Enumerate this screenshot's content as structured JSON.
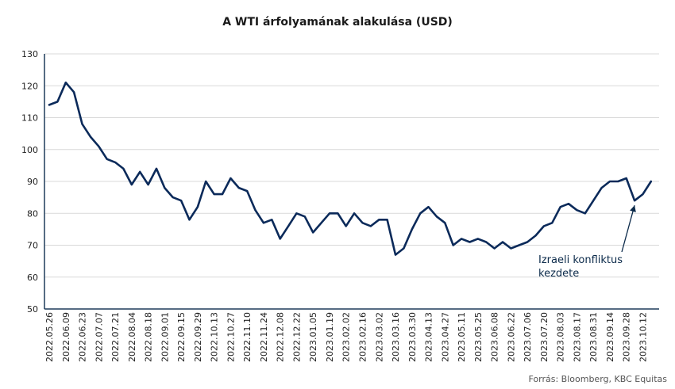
{
  "chart_data": {
    "type": "line",
    "title": "A WTI árfolyamának alakulása (USD)",
    "xlabel": "",
    "ylabel": "",
    "ylim": [
      50,
      130
    ],
    "y_ticks": [
      50,
      60,
      70,
      80,
      90,
      100,
      110,
      120,
      130
    ],
    "x_tick_labels": [
      "2022.05.26",
      "2022.06.09",
      "2022.06.23",
      "2022.07.07",
      "2022.07.21",
      "2022.08.04",
      "2022.08.18",
      "2022.09.01",
      "2022.09.15",
      "2022.09.29",
      "2022.10.13",
      "2022.10.27",
      "2022.11.10",
      "2022.11.24",
      "2022.12.08",
      "2022.12.22",
      "2023.01.05",
      "2023.01.19",
      "2023.02.02",
      "2023.02.16",
      "2023.03.02",
      "2023.03.16",
      "2023.03.30",
      "2023.04.13",
      "2023.04.27",
      "2023.05.11",
      "2023.05.25",
      "2023.06.08",
      "2023.06.22",
      "2023.07.06",
      "2023.07.20",
      "2023.08.03",
      "2023.08.17",
      "2023.08.31",
      "2023.09.14",
      "2023.09.28",
      "2023.10.12"
    ],
    "grid": true,
    "line_color": "#0b2a5a",
    "series": [
      {
        "x": [
          "2022.05.26",
          "2022.06.02",
          "2022.06.09",
          "2022.06.16",
          "2022.06.23",
          "2022.06.30",
          "2022.07.07",
          "2022.07.14",
          "2022.07.21",
          "2022.07.28",
          "2022.08.04",
          "2022.08.11",
          "2022.08.18",
          "2022.08.25",
          "2022.09.01",
          "2022.09.08",
          "2022.09.15",
          "2022.09.22",
          "2022.09.29",
          "2022.10.06",
          "2022.10.13",
          "2022.10.20",
          "2022.10.27",
          "2022.11.03",
          "2022.11.10",
          "2022.11.17",
          "2022.11.24",
          "2022.12.01",
          "2022.12.08",
          "2022.12.15",
          "2022.12.22",
          "2022.12.29",
          "2023.01.05",
          "2023.01.12",
          "2023.01.19",
          "2023.01.26",
          "2023.02.02",
          "2023.02.09",
          "2023.02.16",
          "2023.02.23",
          "2023.03.02",
          "2023.03.09",
          "2023.03.16",
          "2023.03.23",
          "2023.03.30",
          "2023.04.06",
          "2023.04.13",
          "2023.04.20",
          "2023.04.27",
          "2023.05.04",
          "2023.05.11",
          "2023.05.18",
          "2023.05.25",
          "2023.06.01",
          "2023.06.08",
          "2023.06.15",
          "2023.06.22",
          "2023.06.29",
          "2023.07.06",
          "2023.07.13",
          "2023.07.20",
          "2023.07.27",
          "2023.08.03",
          "2023.08.10",
          "2023.08.17",
          "2023.08.24",
          "2023.08.31",
          "2023.09.07",
          "2023.09.14",
          "2023.09.21",
          "2023.09.28",
          "2023.10.05",
          "2023.10.12",
          "2023.10.19"
        ],
        "values": [
          114,
          115,
          121,
          118,
          108,
          104,
          101,
          97,
          96,
          94,
          89,
          93,
          89,
          94,
          88,
          85,
          84,
          78,
          82,
          90,
          86,
          86,
          91,
          88,
          87,
          81,
          77,
          78,
          72,
          76,
          80,
          79,
          74,
          77,
          80,
          80,
          76,
          80,
          77,
          76,
          78,
          78,
          67,
          69,
          75,
          80,
          82,
          79,
          77,
          70,
          72,
          71,
          72,
          71,
          69,
          71,
          69,
          70,
          71,
          73,
          76,
          77,
          82,
          83,
          81,
          80,
          84,
          88,
          90,
          90,
          91,
          84,
          86,
          90
        ]
      }
    ],
    "annotation": {
      "text_line1": "Izraeli konfliktus",
      "text_line2": "kezdete",
      "points_to": "2023.10.05"
    },
    "source": "Forrás: Bloomberg,  KBC Equitas"
  }
}
